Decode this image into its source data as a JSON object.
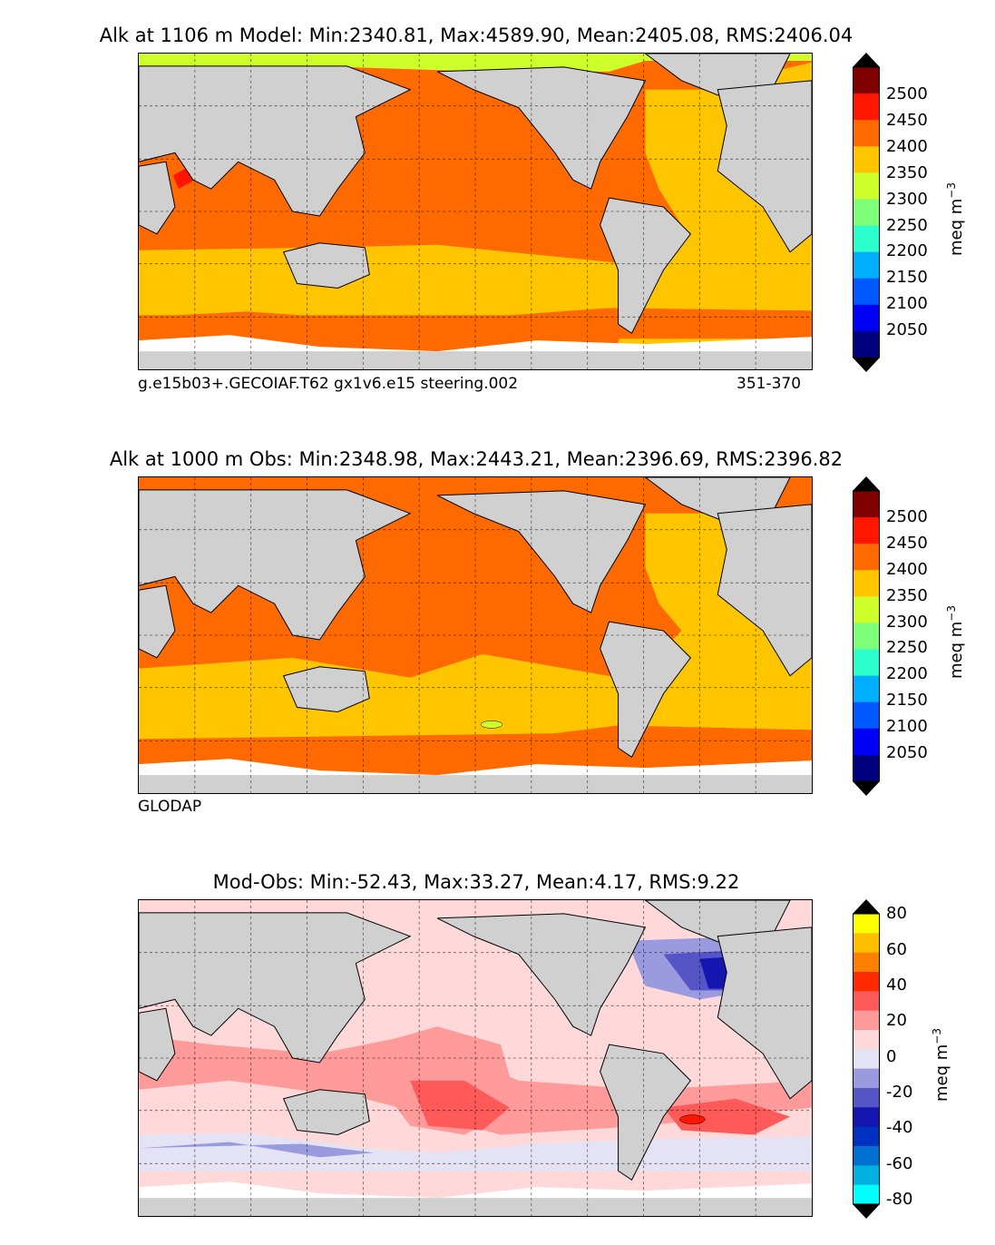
{
  "panels": [
    {
      "title": "Alk at 1106 m Model: Min:2340.81, Max:4589.90, Mean:2405.08, RMS:2406.04",
      "note_left": "g.e15b03+.GECOIAF.T62 gx1v6.e15 steering.002",
      "note_right": "351-370",
      "colorbar": {
        "ticks": [
          "2500",
          "2450",
          "2400",
          "2350",
          "2300",
          "2250",
          "2200",
          "2150",
          "2100",
          "2050"
        ],
        "unit": "meq m",
        "unit_exp": "−3",
        "colors": [
          "#800000",
          "#ff1500",
          "#ff6a00",
          "#ffc600",
          "#cdff2a",
          "#7dff7a",
          "#2affcd",
          "#00aeff",
          "#0058ff",
          "#0000f5",
          "#00007f"
        ]
      }
    },
    {
      "title": "Alk at 1000 m Obs: Min:2348.98, Max:2443.21, Mean:2396.69, RMS:2396.82",
      "note_left": "GLODAP",
      "colorbar": {
        "ticks": [
          "2500",
          "2450",
          "2400",
          "2350",
          "2300",
          "2250",
          "2200",
          "2150",
          "2100",
          "2050"
        ],
        "unit": "meq m",
        "unit_exp": "−3",
        "colors": [
          "#800000",
          "#ff1500",
          "#ff6a00",
          "#ffc600",
          "#cdff2a",
          "#7dff7a",
          "#2affcd",
          "#00aeff",
          "#0058ff",
          "#0000f5",
          "#00007f"
        ]
      }
    },
    {
      "title": "Mod-Obs: Min:-52.43, Max:33.27, Mean:4.17, RMS:9.22",
      "colorbar": {
        "ticks": [
          "80",
          "60",
          "40",
          "20",
          "0",
          "-20",
          "-40",
          "-60",
          "-80"
        ],
        "unit": "meq m",
        "unit_exp": "−3",
        "colors": [
          "#ffff00",
          "#ffbf00",
          "#ff7f00",
          "#ff2a00",
          "#ff5a5a",
          "#ff9a9a",
          "#ffd9d9",
          "#e3e3f5",
          "#9a9ade",
          "#5555c8",
          "#1515b0",
          "#0030c0",
          "#0070d0",
          "#00b0e0",
          "#00ffff"
        ]
      }
    }
  ]
}
